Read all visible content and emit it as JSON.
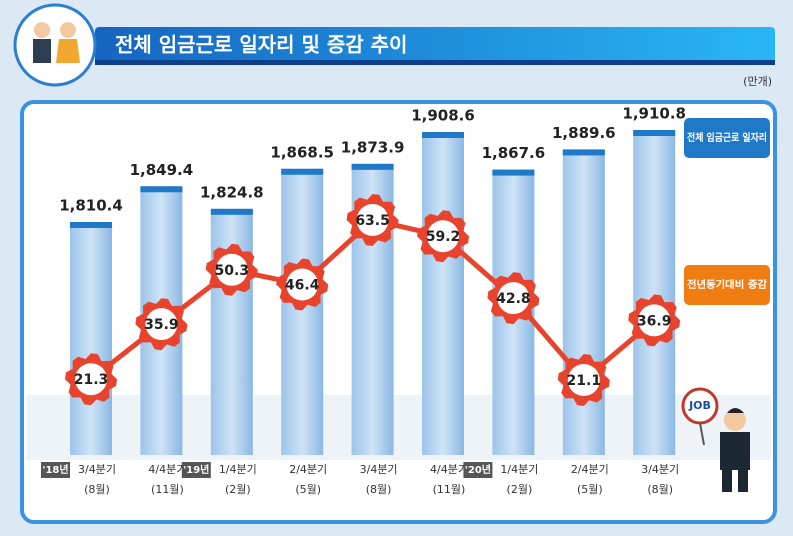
{
  "chart_data": {
    "type": "bar-line",
    "title": "전체 임금근로 일자리 및 증감 추이",
    "unit": "(만개)",
    "categories": [
      "3/4분기",
      "4/4분기",
      "1/4분기",
      "2/4분기",
      "3/4분기",
      "4/4분기",
      "1/4분기",
      "2/4분기",
      "3/4분기"
    ],
    "months": [
      "(8월)",
      "(11월)",
      "(2월)",
      "(5월)",
      "(8월)",
      "(11월)",
      "(2월)",
      "(5월)",
      "(8월)"
    ],
    "year_tags": [
      "'18년",
      null,
      "'19년",
      null,
      null,
      null,
      "'20년",
      null,
      null
    ],
    "series": [
      {
        "name": "전체 임금근로 일자리",
        "type": "bar",
        "color": "#1f78c8",
        "values": [
          1810.4,
          1849.4,
          1824.8,
          1868.5,
          1873.9,
          1908.6,
          1867.6,
          1889.6,
          1910.8
        ],
        "value_labels": [
          "1,810.4",
          "1,849.4",
          "1,824.8",
          "1,868.5",
          "1,873.9",
          "1,908.6",
          "1,867.6",
          "1,889.6",
          "1,910.8"
        ]
      },
      {
        "name": "전년동기대비 증감",
        "type": "line",
        "color": "#e8432c",
        "values": [
          21.3,
          35.9,
          50.3,
          46.4,
          63.5,
          59.2,
          42.8,
          21.1,
          36.9
        ]
      }
    ],
    "sign_text": "JOB"
  }
}
